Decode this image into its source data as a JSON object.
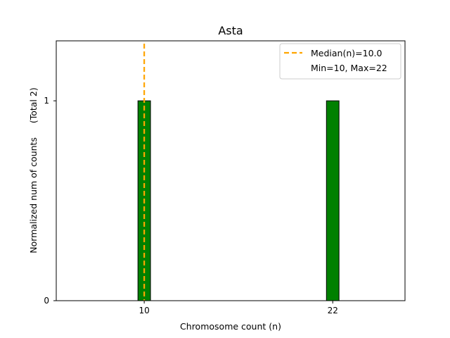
{
  "chart_data": {
    "type": "bar",
    "title": "Asta",
    "xlabel": "Chromosome count (n)",
    "ylabel": "Normalized num of counts     (Total 2)",
    "bars": [
      {
        "x": 10,
        "value": 1
      },
      {
        "x": 22,
        "value": 1
      }
    ],
    "xticks": [
      10,
      22
    ],
    "xtick_labels": [
      "10",
      "22"
    ],
    "yticks": [
      0,
      1
    ],
    "ytick_labels": [
      "0",
      "1"
    ],
    "xlim": [
      4.4,
      26.6
    ],
    "ylim": [
      0,
      1.3
    ],
    "bar_width": 0.8,
    "bar_color": "#008000",
    "bar_edge_color": "#000000",
    "median": {
      "value": 10.0,
      "color": "#FFA500"
    },
    "legend": {
      "position": "top-right",
      "entries": [
        "Median(n)=10.0",
        "Min=10, Max=22"
      ]
    },
    "grid": false
  }
}
